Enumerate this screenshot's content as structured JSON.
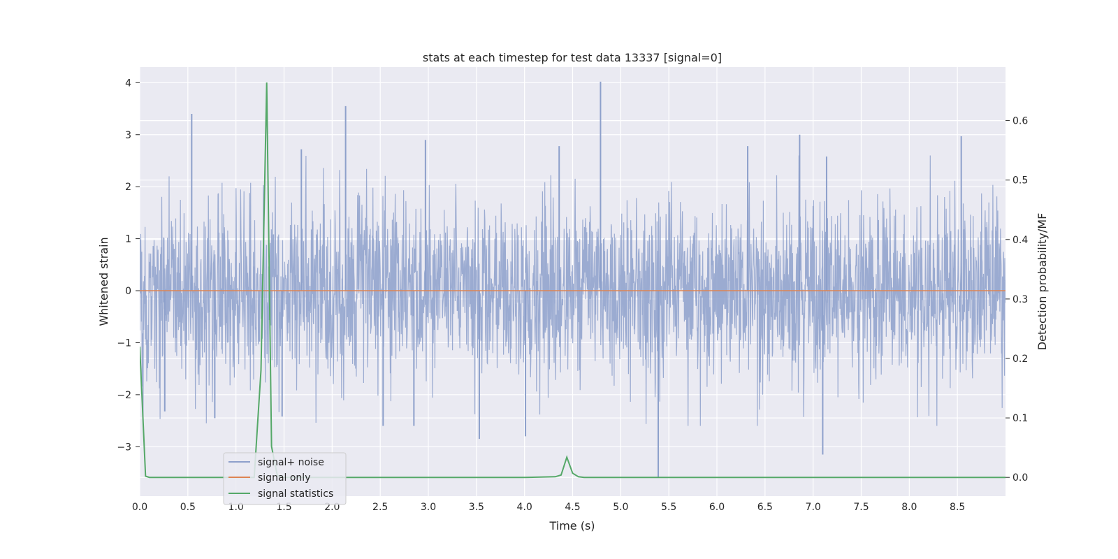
{
  "chart_data": {
    "type": "line",
    "title": "stats at each timestep for test data 13337 [signal=0]",
    "xlabel": "Time (s)",
    "ylabel": "Whitened strain",
    "y2label": "Detection probability/MF",
    "xlim": [
      0.0,
      9.0
    ],
    "ylim": [
      -3.95,
      4.3
    ],
    "y2lim": [
      -0.0315,
      0.69
    ],
    "xticks": [
      "0.0",
      "0.5",
      "1.0",
      "1.5",
      "2.0",
      "2.5",
      "3.0",
      "3.5",
      "4.0",
      "4.5",
      "5.0",
      "5.5",
      "6.0",
      "6.5",
      "7.0",
      "7.5",
      "8.0",
      "8.5"
    ],
    "yticks": [
      "−3",
      "−2",
      "−1",
      "0",
      "1",
      "2",
      "3",
      "4"
    ],
    "y2ticks": [
      "0.0",
      "0.1",
      "0.2",
      "0.3",
      "0.4",
      "0.5",
      "0.6"
    ],
    "grid": true,
    "legend_position": "lower-left",
    "colors": {
      "signal_noise": "#8da0cb",
      "signal_only": "#dd8452",
      "signal_statistics": "#55a868",
      "axes_bg": "#eaeaf2",
      "grid": "#ffffff"
    },
    "series": [
      {
        "name": "signal+ noise",
        "axis": "left",
        "envelope": "dense noise, mostly between about -1.3 and 1.3",
        "spikes": [
          [
            0.54,
            3.4
          ],
          [
            2.14,
            3.55
          ],
          [
            4.79,
            4.02
          ],
          [
            6.86,
            3.0
          ],
          [
            8.54,
            2.97
          ],
          [
            2.97,
            2.9
          ],
          [
            4.36,
            2.78
          ],
          [
            1.68,
            2.72
          ],
          [
            6.32,
            2.78
          ],
          [
            7.14,
            2.58
          ],
          [
            5.39,
            -3.6
          ],
          [
            7.1,
            -3.15
          ],
          [
            4.01,
            -2.8
          ],
          [
            3.53,
            -2.85
          ],
          [
            2.85,
            -2.6
          ],
          [
            2.53,
            -2.6
          ],
          [
            0.26,
            -2.32
          ],
          [
            0.78,
            -2.45
          ],
          [
            1.48,
            -2.42
          ]
        ]
      },
      {
        "name": "signal only",
        "axis": "left",
        "x": [
          0.0,
          9.0
        ],
        "y": [
          0.0,
          0.0
        ]
      },
      {
        "name": "signal statistics",
        "axis": "right",
        "x": [
          0.0,
          0.06,
          0.1,
          0.5,
          1.0,
          1.19,
          1.26,
          1.32,
          1.37,
          1.43,
          1.5,
          2.0,
          3.0,
          4.0,
          4.32,
          4.38,
          4.44,
          4.5,
          4.56,
          4.62,
          5.0,
          9.0
        ],
        "y": [
          0.22,
          0.002,
          0.0,
          0.0,
          0.0,
          0.0,
          0.18,
          0.664,
          0.052,
          0.003,
          0.0,
          0.0,
          0.0,
          0.0,
          0.001,
          0.004,
          0.034,
          0.007,
          0.001,
          0.0,
          0.0,
          0.0
        ]
      }
    ]
  }
}
